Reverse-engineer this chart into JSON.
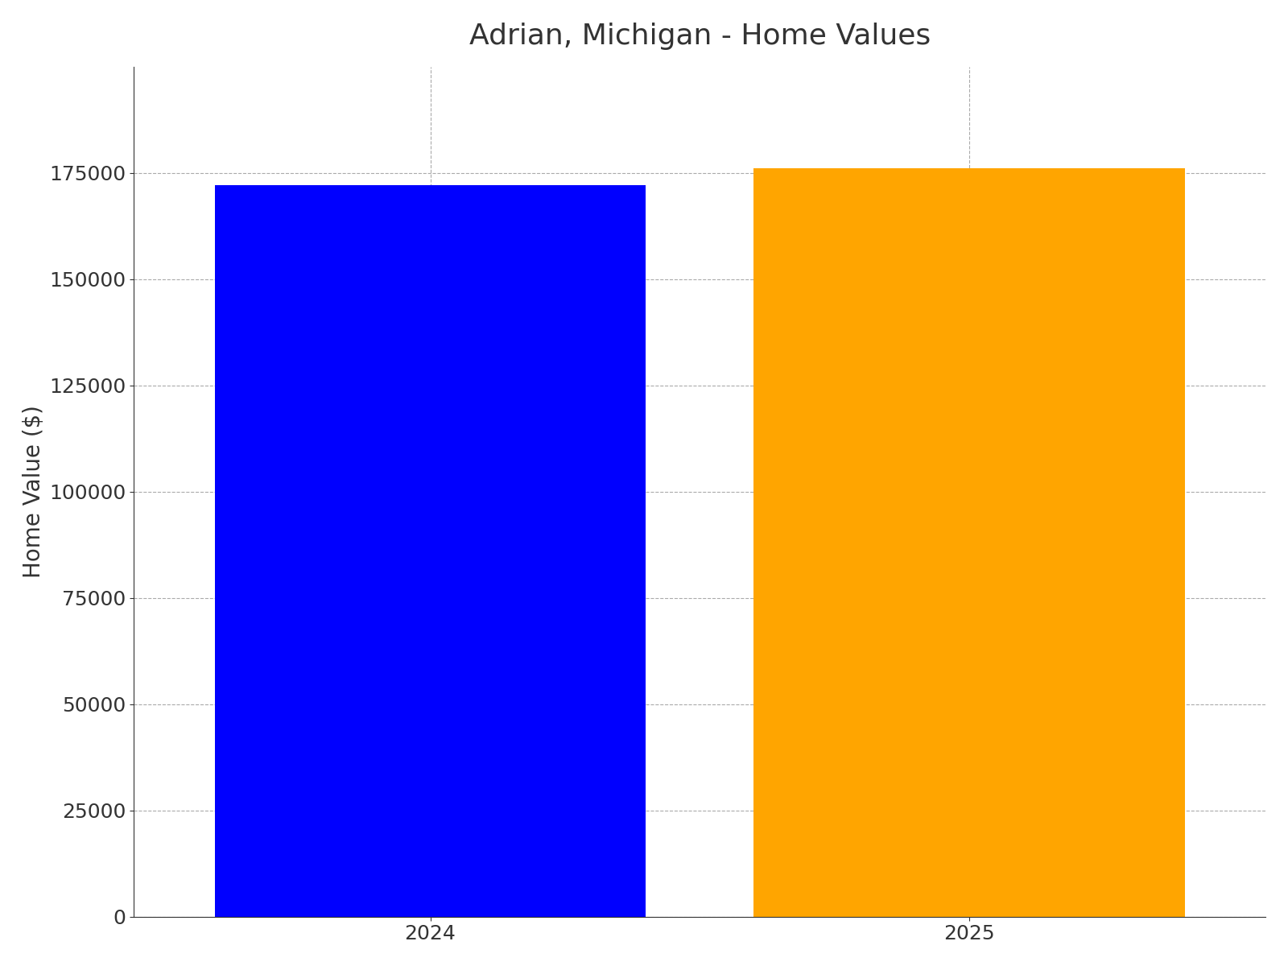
{
  "title": "Adrian, Michigan - Home Values",
  "categories": [
    "2024",
    "2025"
  ],
  "values": [
    172000,
    176000
  ],
  "bar_colors": [
    "#0000ff",
    "#ffa500"
  ],
  "ylabel": "Home Value ($)",
  "ylim": [
    0,
    200000
  ],
  "yticks": [
    0,
    25000,
    50000,
    75000,
    100000,
    125000,
    150000,
    175000
  ],
  "title_fontsize": 26,
  "label_fontsize": 20,
  "tick_fontsize": 18,
  "bar_width": 0.8,
  "grid_color": "#aaaaaa",
  "background_color": "#ffffff"
}
